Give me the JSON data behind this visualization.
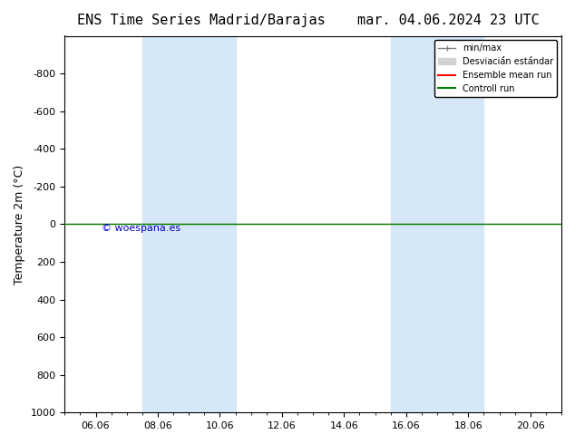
{
  "title_left": "ENS Time Series Madrid/Barajas",
  "title_right": "mar. 04.06.2024 23 UTC",
  "ylabel": "Temperature 2m (°C)",
  "ylim_top": -1000,
  "ylim_bottom": 1000,
  "yticks": [
    -800,
    -600,
    -400,
    -200,
    0,
    200,
    400,
    600,
    800,
    1000
  ],
  "xtick_labels": [
    "06.06",
    "08.06",
    "10.06",
    "12.06",
    "14.06",
    "16.06",
    "18.06",
    "20.06"
  ],
  "xtick_positions": [
    1,
    3,
    5,
    7,
    9,
    11,
    13,
    15
  ],
  "shaded_bands": [
    [
      2.5,
      4.5
    ],
    [
      4.5,
      5.5
    ],
    [
      10.5,
      12.5
    ],
    [
      12.5,
      13.5
    ]
  ],
  "shade_color": "#d6e8f7",
  "line_y": 0,
  "ensemble_mean_color": "#ff0000",
  "control_run_color": "#008000",
  "watermark": "© woespana.es",
  "watermark_color": "#0000cc",
  "legend_labels": [
    "min/max",
    "Desviaciá́n está́ndar",
    "Ensemble mean run",
    "Controll run"
  ],
  "background_color": "#ffffff",
  "title_fontsize": 11,
  "axis_fontsize": 9,
  "tick_fontsize": 8
}
